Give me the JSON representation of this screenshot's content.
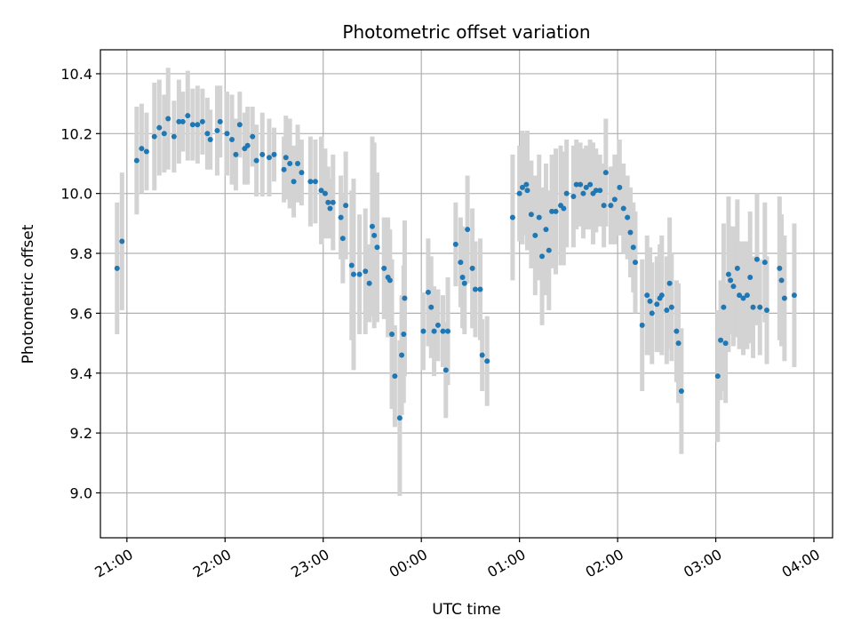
{
  "chart_data": {
    "type": "scatter",
    "title": "Photometric offset variation",
    "xlabel": "UTC time",
    "ylabel": "Photometric offset",
    "x_unit": "UTC hours (values past 24 are the next day)",
    "xlim": [
      20.73,
      28.19
    ],
    "ylim": [
      8.85,
      10.48
    ],
    "x_ticks": [
      {
        "value": 21,
        "label": "21:00"
      },
      {
        "value": 22,
        "label": "22:00"
      },
      {
        "value": 23,
        "label": "23:00"
      },
      {
        "value": 24,
        "label": "00:00"
      },
      {
        "value": 25,
        "label": "01:00"
      },
      {
        "value": 26,
        "label": "02:00"
      },
      {
        "value": 27,
        "label": "03:00"
      },
      {
        "value": 28,
        "label": "04:00"
      }
    ],
    "y_ticks": [
      {
        "value": 9.0,
        "label": "9.0"
      },
      {
        "value": 9.2,
        "label": "9.2"
      },
      {
        "value": 9.4,
        "label": "9.4"
      },
      {
        "value": 9.6,
        "label": "9.6"
      },
      {
        "value": 9.8,
        "label": "9.8"
      },
      {
        "value": 10.0,
        "label": "10.0"
      },
      {
        "value": 10.2,
        "label": "10.2"
      },
      {
        "value": 10.4,
        "label": "10.4"
      }
    ],
    "grid": true,
    "point_color": "#1f77b4",
    "errorbar_color": "#d3d3d3",
    "series": [
      {
        "points": [
          [
            20.9,
            9.75,
            0.22
          ],
          [
            20.95,
            9.84,
            0.23
          ],
          [
            21.1,
            10.11,
            0.18
          ],
          [
            21.15,
            10.15,
            0.15
          ],
          [
            21.2,
            10.14,
            0.13
          ],
          [
            21.28,
            10.19,
            0.18
          ],
          [
            21.33,
            10.22,
            0.16
          ],
          [
            21.38,
            10.2,
            0.13
          ],
          [
            21.42,
            10.25,
            0.17
          ],
          [
            21.48,
            10.19,
            0.12
          ],
          [
            21.53,
            10.24,
            0.14
          ],
          [
            21.57,
            10.24,
            0.1
          ],
          [
            21.62,
            10.26,
            0.15
          ],
          [
            21.67,
            10.23,
            0.12
          ],
          [
            21.72,
            10.23,
            0.13
          ],
          [
            21.77,
            10.24,
            0.11
          ],
          [
            21.82,
            10.2,
            0.12
          ],
          [
            21.85,
            10.18,
            0.1
          ],
          [
            21.92,
            10.21,
            0.15
          ],
          [
            21.95,
            10.24,
            0.12
          ],
          [
            22.02,
            10.2,
            0.14
          ],
          [
            22.07,
            10.18,
            0.15
          ],
          [
            22.11,
            10.13,
            0.12
          ],
          [
            22.15,
            10.23,
            0.11
          ],
          [
            22.2,
            10.15,
            0.12
          ],
          [
            22.23,
            10.16,
            0.13
          ],
          [
            22.28,
            10.19,
            0.1
          ],
          [
            22.32,
            10.11,
            0.12
          ],
          [
            22.38,
            10.13,
            0.14
          ],
          [
            22.45,
            10.12,
            0.13
          ],
          [
            22.5,
            10.13,
            0.09
          ],
          [
            22.6,
            10.08,
            0.11
          ],
          [
            22.62,
            10.12,
            0.14
          ],
          [
            22.66,
            10.1,
            0.15
          ],
          [
            22.7,
            10.04,
            0.12
          ],
          [
            22.74,
            10.1,
            0.13
          ],
          [
            22.78,
            10.07,
            0.11
          ],
          [
            22.87,
            10.04,
            0.15
          ],
          [
            22.92,
            10.04,
            0.14
          ],
          [
            22.98,
            10.01,
            0.18
          ],
          [
            23.02,
            10.0,
            0.15
          ],
          [
            23.05,
            9.97,
            0.12
          ],
          [
            23.07,
            9.95,
            0.1
          ],
          [
            23.1,
            9.97,
            0.16
          ],
          [
            23.18,
            9.92,
            0.14
          ],
          [
            23.23,
            9.96,
            0.18
          ],
          [
            23.2,
            9.85,
            0.15
          ],
          [
            23.29,
            9.76,
            0.25
          ],
          [
            23.31,
            9.73,
            0.32
          ],
          [
            23.37,
            9.73,
            0.2
          ],
          [
            23.43,
            9.74,
            0.21
          ],
          [
            23.47,
            9.7,
            0.13
          ],
          [
            23.5,
            9.89,
            0.3
          ],
          [
            23.52,
            9.86,
            0.31
          ],
          [
            23.55,
            9.82,
            0.25
          ],
          [
            23.62,
            9.75,
            0.17
          ],
          [
            23.66,
            9.72,
            0.2
          ],
          [
            23.68,
            9.71,
            0.17
          ],
          [
            23.7,
            9.53,
            0.25
          ],
          [
            23.73,
            9.39,
            0.17
          ],
          [
            23.78,
            9.25,
            0.26
          ],
          [
            23.8,
            9.46,
            0.2
          ],
          [
            23.82,
            9.53,
            0.23
          ],
          [
            23.83,
            9.65,
            0.26
          ],
          [
            24.02,
            9.54,
            0.13
          ],
          [
            24.07,
            9.67,
            0.18
          ],
          [
            24.1,
            9.62,
            0.17
          ],
          [
            24.13,
            9.54,
            0.15
          ],
          [
            24.17,
            9.56,
            0.12
          ],
          [
            24.22,
            9.54,
            0.12
          ],
          [
            24.27,
            9.54,
            0.18
          ],
          [
            24.25,
            9.41,
            0.16
          ],
          [
            24.35,
            9.83,
            0.14
          ],
          [
            24.4,
            9.77,
            0.15
          ],
          [
            24.42,
            9.72,
            0.17
          ],
          [
            24.44,
            9.7,
            0.17
          ],
          [
            24.47,
            9.88,
            0.18
          ],
          [
            24.52,
            9.75,
            0.2
          ],
          [
            24.55,
            9.68,
            0.16
          ],
          [
            24.6,
            9.68,
            0.17
          ],
          [
            24.62,
            9.46,
            0.12
          ],
          [
            24.67,
            9.44,
            0.15
          ],
          [
            24.93,
            9.92,
            0.21
          ],
          [
            25.0,
            10.0,
            0.16
          ],
          [
            25.03,
            10.02,
            0.19
          ],
          [
            25.07,
            10.03,
            0.17
          ],
          [
            25.08,
            10.01,
            0.2
          ],
          [
            25.12,
            9.93,
            0.18
          ],
          [
            25.16,
            9.86,
            0.2
          ],
          [
            25.2,
            9.92,
            0.21
          ],
          [
            25.23,
            9.79,
            0.23
          ],
          [
            25.27,
            9.88,
            0.22
          ],
          [
            25.3,
            9.81,
            0.2
          ],
          [
            25.33,
            9.94,
            0.19
          ],
          [
            25.37,
            9.94,
            0.21
          ],
          [
            25.42,
            9.96,
            0.2
          ],
          [
            25.45,
            9.95,
            0.19
          ],
          [
            25.48,
            10.0,
            0.18
          ],
          [
            25.55,
            9.99,
            0.17
          ],
          [
            25.58,
            10.03,
            0.15
          ],
          [
            25.62,
            10.03,
            0.14
          ],
          [
            25.65,
            10.0,
            0.15
          ],
          [
            25.68,
            10.02,
            0.14
          ],
          [
            25.72,
            10.03,
            0.15
          ],
          [
            25.75,
            10.0,
            0.17
          ],
          [
            25.78,
            10.01,
            0.14
          ],
          [
            25.82,
            10.01,
            0.12
          ],
          [
            25.86,
            9.96,
            0.14
          ],
          [
            25.88,
            10.07,
            0.18
          ],
          [
            25.93,
            9.96,
            0.13
          ],
          [
            25.97,
            9.98,
            0.15
          ],
          [
            26.02,
            10.02,
            0.16
          ],
          [
            26.06,
            9.95,
            0.15
          ],
          [
            26.1,
            9.92,
            0.14
          ],
          [
            26.13,
            9.87,
            0.15
          ],
          [
            26.16,
            9.82,
            0.15
          ],
          [
            26.18,
            9.77,
            0.17
          ],
          [
            26.25,
            9.56,
            0.22
          ],
          [
            26.3,
            9.66,
            0.2
          ],
          [
            26.33,
            9.64,
            0.18
          ],
          [
            26.35,
            9.6,
            0.17
          ],
          [
            26.4,
            9.63,
            0.16
          ],
          [
            26.43,
            9.65,
            0.18
          ],
          [
            26.45,
            9.66,
            0.2
          ],
          [
            26.5,
            9.61,
            0.18
          ],
          [
            26.53,
            9.7,
            0.22
          ],
          [
            26.55,
            9.62,
            0.18
          ],
          [
            26.6,
            9.54,
            0.17
          ],
          [
            26.62,
            9.5,
            0.2
          ],
          [
            26.65,
            9.34,
            0.21
          ],
          [
            27.02,
            9.39,
            0.22
          ],
          [
            27.05,
            9.51,
            0.2
          ],
          [
            27.08,
            9.62,
            0.28
          ],
          [
            27.1,
            9.5,
            0.2
          ],
          [
            27.13,
            9.73,
            0.26
          ],
          [
            27.15,
            9.71,
            0.18
          ],
          [
            27.18,
            9.69,
            0.2
          ],
          [
            27.22,
            9.75,
            0.23
          ],
          [
            27.24,
            9.66,
            0.18
          ],
          [
            27.28,
            9.65,
            0.19
          ],
          [
            27.32,
            9.66,
            0.18
          ],
          [
            27.35,
            9.72,
            0.22
          ],
          [
            27.38,
            9.62,
            0.17
          ],
          [
            27.42,
            9.78,
            0.22
          ],
          [
            27.45,
            9.62,
            0.16
          ],
          [
            27.5,
            9.77,
            0.2
          ],
          [
            27.52,
            9.61,
            0.18
          ],
          [
            27.65,
            9.75,
            0.24
          ],
          [
            27.67,
            9.71,
            0.22
          ],
          [
            27.7,
            9.65,
            0.21
          ],
          [
            27.8,
            9.66,
            0.24
          ]
        ]
      }
    ]
  }
}
